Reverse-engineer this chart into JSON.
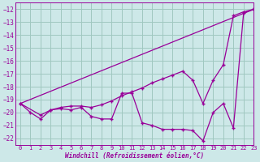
{
  "xlabel": "Windchill (Refroidissement éolien,°C)",
  "xlim": [
    -0.5,
    23
  ],
  "ylim": [
    -22.5,
    -11.5
  ],
  "yticks": [
    -22,
    -21,
    -20,
    -19,
    -18,
    -17,
    -16,
    -15,
    -14,
    -13,
    -12
  ],
  "xticks": [
    0,
    1,
    2,
    3,
    4,
    5,
    6,
    7,
    8,
    9,
    10,
    11,
    12,
    13,
    14,
    15,
    16,
    17,
    18,
    19,
    20,
    21,
    22,
    23
  ],
  "bg_color": "#cde8e8",
  "grid_color": "#a0c8c0",
  "line_color": "#990099",
  "line1_x": [
    0,
    1,
    2,
    3,
    4,
    5,
    6,
    7,
    8,
    9,
    10,
    11,
    12,
    13,
    14,
    15,
    16,
    17,
    18,
    19,
    20,
    21,
    22,
    23
  ],
  "line1_y": [
    -19.3,
    -20.0,
    -20.5,
    -19.8,
    -19.7,
    -19.8,
    -19.6,
    -20.3,
    -20.5,
    -20.5,
    -18.5,
    -18.5,
    -20.8,
    -21.0,
    -21.3,
    -21.3,
    -21.3,
    -21.4,
    -22.2,
    -20.0,
    -19.3,
    -21.2,
    -12.3,
    -12.0
  ],
  "line2_x": [
    0,
    2,
    3,
    4,
    5,
    6,
    7,
    8,
    9,
    10,
    11,
    12,
    13,
    14,
    15,
    16,
    17,
    18,
    19,
    20,
    21,
    22,
    23
  ],
  "line2_y": [
    -19.3,
    -20.2,
    -19.8,
    -19.6,
    -19.5,
    -19.5,
    -19.6,
    -19.4,
    -19.1,
    -18.7,
    -18.4,
    -18.1,
    -17.7,
    -17.4,
    -17.1,
    -16.8,
    -17.5,
    -19.3,
    -17.5,
    -16.3,
    -12.5,
    -12.2,
    -12.0
  ],
  "line3_x": [
    0,
    23
  ],
  "line3_y": [
    -19.3,
    -12.0
  ]
}
